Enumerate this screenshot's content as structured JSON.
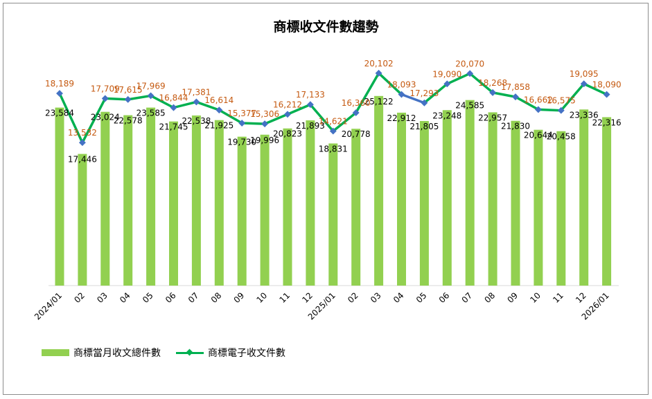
{
  "chart_data": {
    "type": "bar+line",
    "title": "商標收文件數趨勢",
    "categories": [
      "2024/01",
      "02",
      "03",
      "04",
      "05",
      "06",
      "07",
      "08",
      "09",
      "10",
      "11",
      "12",
      "2025/01",
      "02",
      "03",
      "04",
      "05",
      "06",
      "07",
      "08",
      "09",
      "10",
      "11",
      "12",
      "2026/01"
    ],
    "series": [
      {
        "name": "商標當月收文總件數",
        "type": "bar",
        "color": "#92d050",
        "values": [
          23584,
          17446,
          23024,
          22578,
          23585,
          21745,
          22538,
          21925,
          19730,
          19996,
          20823,
          21893,
          18831,
          20778,
          25122,
          22912,
          21805,
          23248,
          24585,
          22957,
          21830,
          20644,
          20458,
          23336,
          22316
        ],
        "labels": [
          "23,584",
          "17,446",
          "23,024",
          "22,578",
          "23,585",
          "21,745",
          "22,538",
          "21,925",
          "19,730",
          "19,996",
          "20,823",
          "21,893",
          "18,831",
          "20,778",
          "25,122",
          "22,912",
          "21,805",
          "23,248",
          "24,585",
          "22,957",
          "21,830",
          "20,644",
          "20,458",
          "23,336",
          "22,316"
        ]
      },
      {
        "name": "商標電子收文件數",
        "type": "line",
        "color": "#00b050",
        "highlight_color": "#4472c4",
        "values": [
          18189,
          13532,
          17709,
          17615,
          17969,
          16844,
          17381,
          16614,
          15377,
          15306,
          16212,
          17133,
          14621,
          16360,
          20102,
          18093,
          17293,
          19090,
          20070,
          18268,
          17858,
          16662,
          16575,
          19095,
          18090
        ],
        "labels": [
          "18,189",
          "13,532",
          "17,709",
          "17,615",
          "17,969",
          "16,844",
          "17,381",
          "16,614",
          "15,377",
          "15,306",
          "16,212",
          "17,133",
          "14,621",
          "16,360",
          "20,102",
          "18,093",
          "17,293",
          "19,090",
          "20,070",
          "18,268",
          "17,858",
          "16,662",
          "16,575",
          "19,095",
          "18,090"
        ]
      }
    ],
    "bar_axis_range": [
      0,
      35000
    ],
    "line_axis_range": [
      0,
      25000
    ],
    "axes_visible": false,
    "grid": false,
    "legend": "bottom-left",
    "label_colors": {
      "bar": "#000000",
      "line": "#c55a11"
    }
  }
}
